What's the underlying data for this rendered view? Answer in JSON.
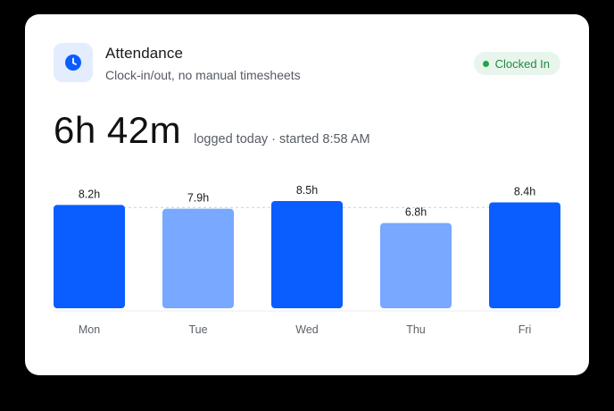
{
  "header": {
    "icon": "clock-icon",
    "title": "Attendance",
    "subtitle": "Clock-in/out, no manual timesheets"
  },
  "status": {
    "label": "Clocked In",
    "color": "#22a447"
  },
  "summary": {
    "value": "6h 42m",
    "caption": "logged today · started 8:58 AM"
  },
  "colors": {
    "accent": "#0a5dff",
    "accent_light": "#78a8ff"
  },
  "chart_data": {
    "type": "bar",
    "categories": [
      "Mon",
      "Tue",
      "Wed",
      "Thu",
      "Fri"
    ],
    "values": [
      8.2,
      7.9,
      8.5,
      6.8,
      8.4
    ],
    "labels": [
      "8.2h",
      "7.9h",
      "8.5h",
      "6.8h",
      "8.4h"
    ],
    "highlight": [
      true,
      false,
      true,
      false,
      true
    ],
    "target_line": 8,
    "ylim": [
      0,
      8.5
    ],
    "grid": false
  }
}
